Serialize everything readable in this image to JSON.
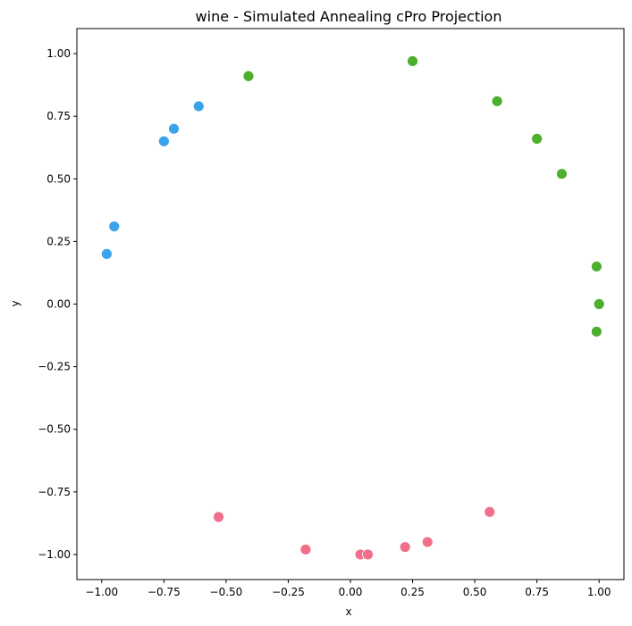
{
  "chart_data": {
    "type": "scatter",
    "title": "wine - Simulated Annealing cPro Projection",
    "xlabel": "x",
    "ylabel": "y",
    "xlim": [
      -1.1,
      1.1
    ],
    "ylim": [
      -1.1,
      1.1
    ],
    "grid": false,
    "xticks": [
      {
        "value": -1.0,
        "label": "−1.00"
      },
      {
        "value": -0.75,
        "label": "−0.75"
      },
      {
        "value": -0.5,
        "label": "−0.50"
      },
      {
        "value": -0.25,
        "label": "−0.25"
      },
      {
        "value": 0.0,
        "label": "0.00"
      },
      {
        "value": 0.25,
        "label": "0.25"
      },
      {
        "value": 0.5,
        "label": "0.50"
      },
      {
        "value": 0.75,
        "label": "0.75"
      },
      {
        "value": 1.0,
        "label": "1.00"
      }
    ],
    "yticks": [
      {
        "value": -1.0,
        "label": "−1.00"
      },
      {
        "value": -0.75,
        "label": "−0.75"
      },
      {
        "value": -0.5,
        "label": "−0.50"
      },
      {
        "value": -0.25,
        "label": "−0.25"
      },
      {
        "value": 0.0,
        "label": "0.00"
      },
      {
        "value": 0.25,
        "label": "0.25"
      },
      {
        "value": 0.5,
        "label": "0.50"
      },
      {
        "value": 0.75,
        "label": "0.75"
      },
      {
        "value": 1.0,
        "label": "1.00"
      }
    ],
    "series": [
      {
        "color": "#3ba3ec",
        "points": [
          {
            "x": -0.98,
            "y": 0.2
          },
          {
            "x": -0.95,
            "y": 0.31
          },
          {
            "x": -0.75,
            "y": 0.65
          },
          {
            "x": -0.71,
            "y": 0.7
          },
          {
            "x": -0.61,
            "y": 0.79
          }
        ]
      },
      {
        "color": "#4daf2e",
        "points": [
          {
            "x": -0.41,
            "y": 0.91
          },
          {
            "x": 0.25,
            "y": 0.97
          },
          {
            "x": 0.59,
            "y": 0.81
          },
          {
            "x": 0.75,
            "y": 0.66
          },
          {
            "x": 0.85,
            "y": 0.52
          },
          {
            "x": 0.99,
            "y": 0.15
          },
          {
            "x": 1.0,
            "y": 0.0
          },
          {
            "x": 0.99,
            "y": -0.11
          }
        ]
      },
      {
        "color": "#f0708a",
        "points": [
          {
            "x": -0.53,
            "y": -0.85
          },
          {
            "x": -0.18,
            "y": -0.98
          },
          {
            "x": 0.04,
            "y": -1.0
          },
          {
            "x": 0.07,
            "y": -1.0
          },
          {
            "x": 0.22,
            "y": -0.97
          },
          {
            "x": 0.31,
            "y": -0.95
          },
          {
            "x": 0.56,
            "y": -0.83
          }
        ]
      }
    ]
  }
}
